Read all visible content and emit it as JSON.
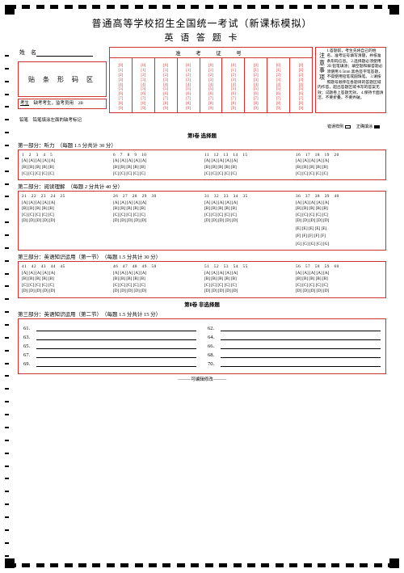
{
  "title": "普通高等学校招生全国统一考试（新课标模拟）",
  "subtitle": "英 语 答 题 卡",
  "name_label": "姓　名",
  "exam_no_label": "准　考　证　号",
  "barcode_label": "贴 条 形 码 区",
  "absent_text": "缺考考生，监考员用　2B",
  "absent_prefix": "考生",
  "mark_note": "铅笔　铅笔填涂左面的缺考标记",
  "notice_header": "注意事项",
  "notice_body": "1.答题前，考生先将自己的姓名、准考证号填写清楚，并核准条形码信息。 2.选择题必须使用 2B 铅笔填涂；填空题和解答题必须使用 0.5mm 黑色签字笔答题，不得使用铅笔或圆珠笔。 3.请按照题号顺序在各题目的答题区域内作答，超出答题区域书写的答案无效；试题卷上答题无效。 4.保持卡面清洁，不要折叠，不要弄破。",
  "example_wrong": "错误样例",
  "example_right": "正确填涂",
  "part1": "第Ⅰ卷 选择题",
  "sec1": "第一部分：听力　（每题 1.5 分共计 30 分）",
  "sec2": "第二部分：阅读理解　（每题 2 分共计 40 分）",
  "sec3": "第三部分：英语知识运用（第一节）　（每题 1.5 分共计 30 分）",
  "part2": "第Ⅱ卷 非选择题",
  "sec4": "第三部分：英语知识运用（第二节）　（每题 1.5 分共计 15 分）",
  "footer": "———可编辑修改———",
  "digits": [
    "0",
    "1",
    "2",
    "3",
    "4",
    "5",
    "6",
    "7",
    "8",
    "9"
  ],
  "exam_cols": 9,
  "listening": [
    {
      "nums": "1　2　3　4　5",
      "rows": [
        "[A] [A] [A] [A] [A]",
        "[B] [B] [B] [B] [B]",
        "[C] [C] [C] [C] [C]"
      ]
    },
    {
      "nums": "6　7　8　9　10",
      "rows": [
        "[A] [A] [A] [A] [A]",
        "[B] [B] [B] [B] [B]",
        "[C] [C] [C] [C] [C]"
      ]
    },
    {
      "nums": "11　12　13　14　15",
      "rows": [
        "[A] [A] [A] [A] [A]",
        "[B] [B] [B] [B] [B]",
        "[C] [C] [C] [C] [C]"
      ]
    },
    {
      "nums": "16　17　18　19　20",
      "rows": [
        "[A] [A] [A] [A] [A]",
        "[B] [B] [B] [B] [B]",
        "[C] [C] [C] [C] [C]"
      ]
    }
  ],
  "reading": [
    {
      "nums": "21　22　23　24　25",
      "rows": [
        "[A] [A] [A] [A] [A]",
        "[B] [B] [B] [B] [B]",
        "[C] [C] [C] [C] [C]",
        "[D] [D] [D] [D] [D]"
      ]
    },
    {
      "nums": "26　27　28　29　30",
      "rows": [
        "[A] [A] [A] [A] [A]",
        "[B] [B] [B] [B] [B]",
        "[C] [C] [C] [C] [C]",
        "[D] [D] [D] [D] [D]"
      ]
    },
    {
      "nums": "31　32　33　34　35",
      "rows": [
        "[A] [A] [A] [A] [A]",
        "[B] [B] [B] [B] [B]",
        "[C] [C] [C] [C] [C]",
        "[D] [D] [D] [D] [D]"
      ]
    },
    {
      "nums": "36　37　38　39　40",
      "rows": [
        "[A] [A] [A] [A] [A]",
        "[B] [B] [B] [B] [B]",
        "[C] [C] [C] [C] [C]",
        "[D] [D] [D] [D] [D]",
        "[E] [E] [E] [E] [E]",
        "[F] [F] [F] [F] [F]",
        "[G] [G] [G] [G] [G]"
      ]
    }
  ],
  "cloze": [
    {
      "nums": "41　42　43　44　45",
      "rows": [
        "[A] [A] [A] [A] [A]",
        "[B] [B] [B] [B] [B]",
        "[C] [C] [C] [C] [C]",
        "[D] [D] [D] [D] [D]"
      ]
    },
    {
      "nums": "46　47　48　49　50",
      "rows": [
        "[A] [A] [A] [A] [A]",
        "[B] [B] [B] [B] [B]",
        "[C] [C] [C] [C] [C]",
        "[D] [D] [D] [D] [D]"
      ]
    },
    {
      "nums": "51　52　53　54　55",
      "rows": [
        "[A] [A] [A] [A] [A]",
        "[B] [B] [B] [B] [B]",
        "[C] [C] [C] [C] [C]",
        "[D] [D] [D] [D] [D]"
      ]
    },
    {
      "nums": "56　57　58　59　60",
      "rows": [
        "[A] [A] [A] [A] [A]",
        "[B] [B] [B] [B] [B]",
        "[C] [C] [C] [C] [C]",
        "[D] [D] [D] [D] [D]"
      ]
    }
  ],
  "fill_left": [
    "61.",
    "63.",
    "65.",
    "67.",
    "69."
  ],
  "fill_right": [
    "62.",
    "64.",
    "66.",
    "68.",
    "70."
  ],
  "colors": {
    "border": "#c33",
    "text": "#000",
    "bg": "#fff"
  }
}
